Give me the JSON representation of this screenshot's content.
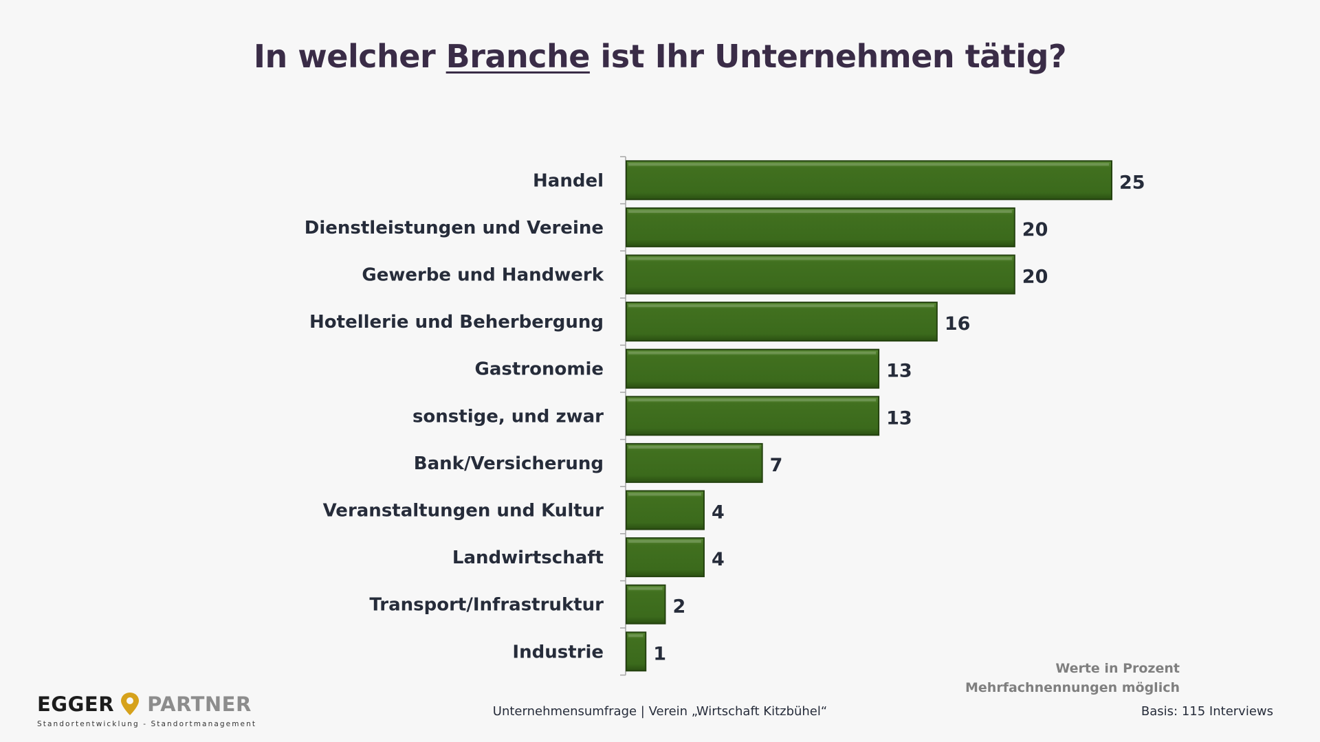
{
  "title": {
    "pre": "In welcher ",
    "emph": "Branche",
    "post": " ist Ihr Unternehmen tätig?"
  },
  "colors": {
    "bar": "#3f6f1f",
    "bar_border": "#24420f",
    "text": "#262c3a",
    "title": "#3a2c47",
    "note": "#7f7f7f"
  },
  "chart_data": {
    "type": "bar",
    "orientation": "horizontal",
    "categories": [
      "Handel",
      "Dienstleistungen und Vereine",
      "Gewerbe und Handwerk",
      "Hotellerie und Beherbergung",
      "Gastronomie",
      "sonstige, und zwar",
      "Bank/Versicherung",
      "Veranstaltungen und Kultur",
      "Landwirtschaft",
      "Transport/Infrastruktur",
      "Industrie"
    ],
    "values": [
      25,
      20,
      20,
      16,
      13,
      13,
      7,
      4,
      4,
      2,
      1
    ],
    "xlim": [
      0,
      25
    ],
    "grid": false,
    "legend": "none"
  },
  "notes": {
    "unit": "Werte in Prozent",
    "multi": "Mehrfachnennungen möglich"
  },
  "footer": "Unternehmensumfrage | Verein „Wirtschaft Kitzbühel“",
  "basis": "Basis: 115 Interviews",
  "logo": {
    "name_left": "EGGER",
    "name_right": "PARTNER",
    "tagline": "Standortentwicklung - Standortmanagement",
    "icon": "location-pin-icon"
  }
}
